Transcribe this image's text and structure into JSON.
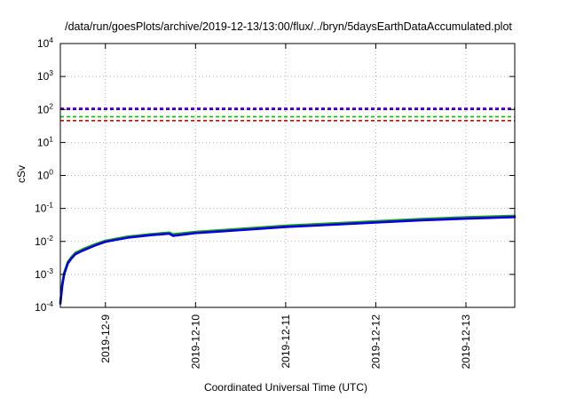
{
  "chart_data": {
    "type": "line",
    "title": "/data/run/goesPlots/archive/2019-12-13/13:00/flux/../bryn/5daysEarthDataAccumulated.plot",
    "xlabel": "Coordinated Universal Time (UTC)",
    "ylabel": "cSv",
    "yscale": "log",
    "ylim": [
      0.0001,
      10000
    ],
    "yticks": [
      {
        "base": "10",
        "exp": "-4",
        "value": 0.0001
      },
      {
        "base": "10",
        "exp": "-3",
        "value": 0.001
      },
      {
        "base": "10",
        "exp": "-2",
        "value": 0.01
      },
      {
        "base": "10",
        "exp": "-1",
        "value": 0.1
      },
      {
        "base": "10",
        "exp": "0",
        "value": 1
      },
      {
        "base": "10",
        "exp": "1",
        "value": 10
      },
      {
        "base": "10",
        "exp": "2",
        "value": 100
      },
      {
        "base": "10",
        "exp": "3",
        "value": 1000
      },
      {
        "base": "10",
        "exp": "4",
        "value": 10000
      }
    ],
    "xlim": [
      "2019-12-08 12:00",
      "2019-12-13 13:00"
    ],
    "xticks": [
      "2019-12-9",
      "2019-12-10",
      "2019-12-11",
      "2019-12-12",
      "2019-12-13"
    ],
    "grid": true,
    "reference_lines": [
      {
        "value": 110,
        "color": "#9400d3",
        "style": "dashed"
      },
      {
        "value": 100,
        "color": "#0000cd",
        "style": "dashed"
      },
      {
        "value": 60,
        "color": "#00c000",
        "style": "dashed"
      },
      {
        "value": 46,
        "color": "#e00000",
        "style": "dashed"
      }
    ],
    "series": [
      {
        "color": "#1a9e1a",
        "x": [
          "2019-12-08 12:00",
          "2019-12-08 12:30",
          "2019-12-08 13:00",
          "2019-12-08 14:00",
          "2019-12-08 15:00",
          "2019-12-08 16:00",
          "2019-12-08 18:00",
          "2019-12-08 20:00",
          "2019-12-08 22:00",
          "2019-12-09 00:00",
          "2019-12-09 06:00",
          "2019-12-09 12:00",
          "2019-12-09 15:00",
          "2019-12-09 17:00",
          "2019-12-09 18:00",
          "2019-12-10 00:00",
          "2019-12-10 12:00",
          "2019-12-11 00:00",
          "2019-12-11 12:00",
          "2019-12-12 00:00",
          "2019-12-12 12:00",
          "2019-12-13 00:00",
          "2019-12-13 13:00"
        ],
        "values": [
          0.00015,
          0.0005,
          0.0011,
          0.0024,
          0.0034,
          0.0045,
          0.0058,
          0.0072,
          0.0088,
          0.0105,
          0.014,
          0.0165,
          0.0178,
          0.0185,
          0.0165,
          0.0195,
          0.024,
          0.03,
          0.035,
          0.041,
          0.048,
          0.054,
          0.06
        ]
      },
      {
        "color": "#0000e0",
        "x": [
          "2019-12-08 12:00",
          "2019-12-08 12:30",
          "2019-12-08 13:00",
          "2019-12-08 14:00",
          "2019-12-08 15:00",
          "2019-12-08 16:00",
          "2019-12-08 18:00",
          "2019-12-08 20:00",
          "2019-12-08 22:00",
          "2019-12-09 00:00",
          "2019-12-09 06:00",
          "2019-12-09 12:00",
          "2019-12-09 15:00",
          "2019-12-09 17:00",
          "2019-12-09 18:00",
          "2019-12-10 00:00",
          "2019-12-10 12:00",
          "2019-12-11 00:00",
          "2019-12-11 12:00",
          "2019-12-12 00:00",
          "2019-12-12 12:00",
          "2019-12-13 00:00",
          "2019-12-13 13:00"
        ],
        "values": [
          0.00013,
          0.00045,
          0.001,
          0.0022,
          0.0031,
          0.0041,
          0.0053,
          0.0066,
          0.0081,
          0.0098,
          0.013,
          0.0155,
          0.0165,
          0.0172,
          0.0148,
          0.018,
          0.022,
          0.0275,
          0.032,
          0.0375,
          0.044,
          0.049,
          0.055
        ]
      }
    ]
  }
}
